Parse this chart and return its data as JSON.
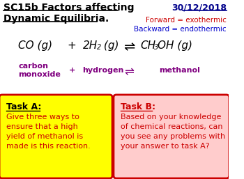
{
  "title_line1": "SC15b Factors affecting",
  "title_line2": "Dynamic Equilibria.",
  "date": "30/12/2018",
  "forward_label": "Forward = exothermic",
  "backward_label": "Backward = endothermic",
  "task_a_title": "Task A:",
  "task_a_body": "Give three ways to\nensure that a high\nyield of methanol is\nmade is this reaction.",
  "task_b_title": "Task B:",
  "task_b_body": "Based on your knowledge\nof chemical reactions, can\nyou see any problems with\nyour answer to task A?",
  "bg_color": "#ffffff",
  "title_color": "#000000",
  "date_color": "#00008B",
  "forward_color": "#cc0000",
  "backward_color": "#0000cc",
  "equation_color": "#000000",
  "label_color": "#800080",
  "task_a_bg": "#ffff00",
  "task_b_bg": "#ffcccc",
  "task_a_title_color": "#000000",
  "task_b_title_color": "#cc0000",
  "task_a_body_color": "#cc0000",
  "task_b_body_color": "#cc0000",
  "border_color": "#cc0000"
}
